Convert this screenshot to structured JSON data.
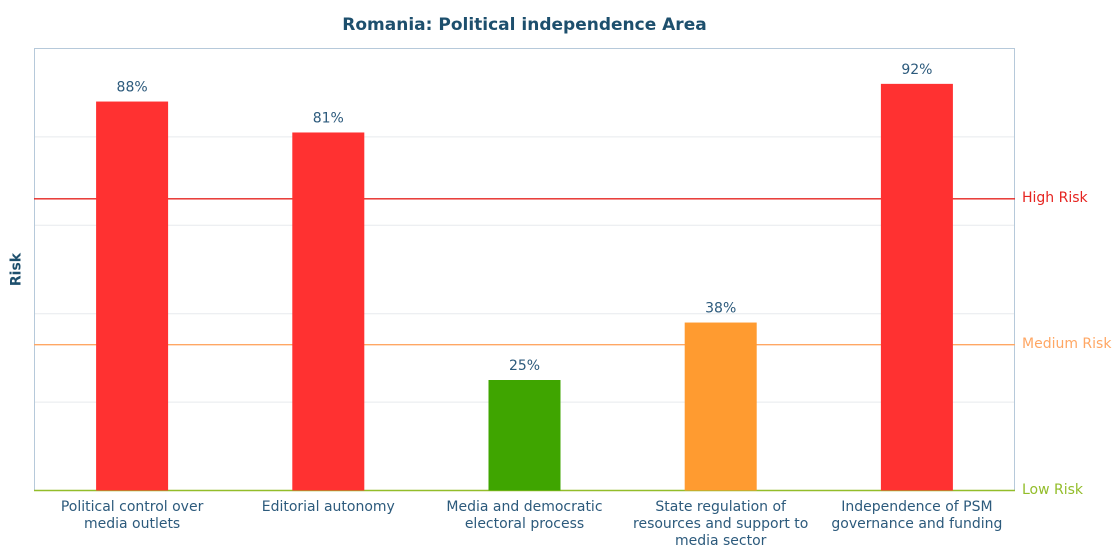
{
  "chart_data": {
    "type": "bar",
    "title": "Romania: Political independence Area",
    "ylabel": "Risk",
    "ylim": [
      0,
      100
    ],
    "grid": true,
    "yticks": [
      20,
      40,
      60,
      80
    ],
    "categories": [
      "Political control over\nmedia outlets",
      "Editorial autonomy",
      "Media and democratic\nelectoral process",
      "State regulation of\nresources and support to\nmedia sector",
      "Independence of PSM\ngovernance and funding"
    ],
    "values": [
      88,
      81,
      25,
      38,
      92
    ],
    "value_labels": [
      "88%",
      "81%",
      "25%",
      "38%",
      "92%"
    ],
    "bar_colors": [
      "#ff3131",
      "#ff3131",
      "#3fa500",
      "#ff9b30",
      "#ff3131"
    ],
    "reference_lines": [
      {
        "label": "High Risk",
        "value": 66,
        "color": "#e62420"
      },
      {
        "label": "Medium Risk",
        "value": 33,
        "color": "#ffa764"
      },
      {
        "label": "Low Risk",
        "value": 0,
        "color": "#93bd2a"
      }
    ]
  },
  "colors": {
    "title": "#1d4f6d",
    "text": "#2c5a7c",
    "frame": "#b6c9da",
    "grid": "#e7eaee",
    "background": "#ffffff"
  }
}
